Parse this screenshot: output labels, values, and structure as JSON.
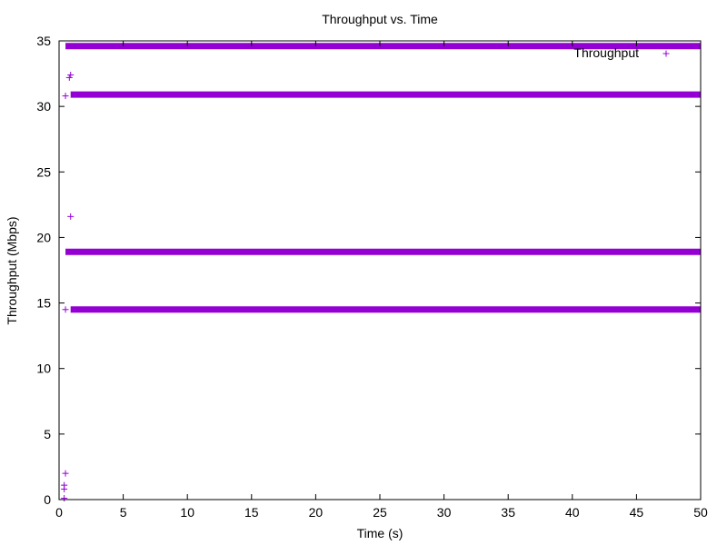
{
  "chart_data": {
    "type": "scatter",
    "title": "Throughput vs. Time",
    "xlabel": "Time (s)",
    "ylabel": "Throughput (Mbps)",
    "xlim": [
      0,
      50
    ],
    "ylim": [
      0,
      35
    ],
    "x_ticks": [
      "0",
      "5",
      "10",
      "15",
      "20",
      "25",
      "30",
      "35",
      "40",
      "45",
      "50"
    ],
    "y_ticks": [
      "0",
      "5",
      "10",
      "15",
      "20",
      "25",
      "30",
      "35"
    ],
    "grid": false,
    "legend_position": "top-right",
    "series": [
      {
        "name": "Throughput",
        "color": "#9400d3",
        "marker": "plus",
        "points": [
          [
            0.4,
            0.1
          ],
          [
            0.4,
            0.8
          ],
          [
            0.4,
            1.1
          ],
          [
            0.5,
            2.0
          ],
          [
            0.5,
            30.8
          ],
          [
            0.8,
            32.2
          ],
          [
            0.9,
            32.4
          ],
          [
            0.9,
            21.6
          ],
          [
            0.5,
            14.5
          ]
        ],
        "levels": [
          {
            "y": 34.6,
            "x_start": 0.5,
            "x_end": 50.0
          },
          {
            "y": 30.9,
            "x_start": 0.9,
            "x_end": 50.0
          },
          {
            "y": 18.9,
            "x_start": 0.5,
            "x_end": 50.0
          },
          {
            "y": 14.5,
            "x_start": 0.9,
            "x_end": 50.0
          }
        ]
      }
    ]
  }
}
